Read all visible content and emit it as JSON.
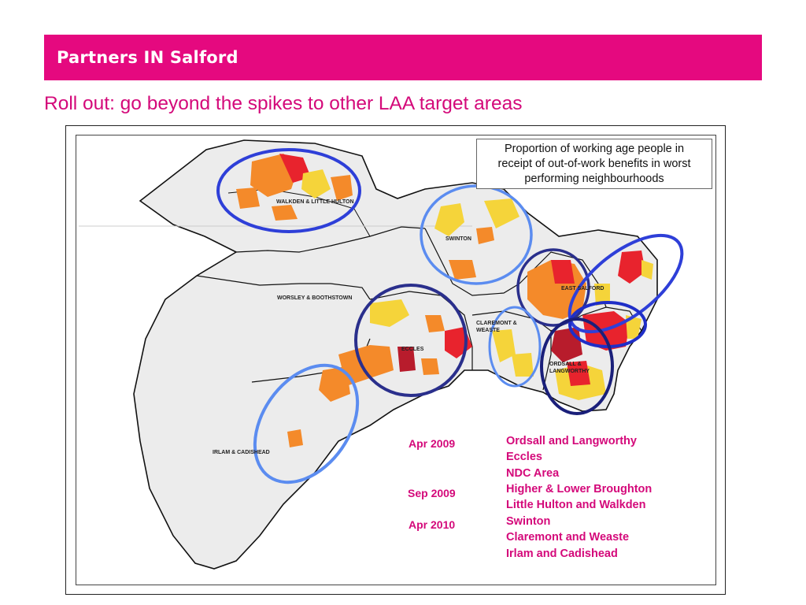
{
  "header": {
    "banner_text": "Partners IN Salford",
    "banner_color": "#e5097f"
  },
  "slide": {
    "title": "Roll out: go beyond the spikes to other LAA target areas",
    "title_color": "#d4097a"
  },
  "map": {
    "legend_lines": [
      "Proportion of working age people in",
      "receipt of out-of-work benefits in worst",
      "performing neighbourhoods"
    ],
    "area_labels": {
      "walkden": "WALKDEN & LITTLE HULTON",
      "swinton": "SWINTON",
      "east_salford": "EAST SALFORD",
      "worsley": "WORSLEY & BOOTHSTOWN",
      "claremont": "CLAREMONT & WEASTE",
      "eccles": "ECCLES",
      "ordsall": "ORDSALL & LANGWORTHY",
      "irlam": "IRLAM & CADISHEAD"
    },
    "colors": {
      "deprivation_high": "#e8232d",
      "deprivation_mid": "#f48a2a",
      "deprivation_low": "#f5d43a",
      "ring_dark": "#2a2f8c",
      "ring_mid": "#2e3fd8",
      "ring_light": "#5b8cf0"
    }
  },
  "rollout": {
    "dates": [
      "Apr 2009",
      "Sep 2009",
      "Apr 2010"
    ],
    "areas": [
      "Ordsall and Langworthy",
      "Eccles",
      "NDC Area",
      "Higher & Lower Broughton",
      "Little Hulton and Walkden",
      "Swinton",
      "Claremont and Weaste",
      "Irlam and Cadishead"
    ]
  }
}
